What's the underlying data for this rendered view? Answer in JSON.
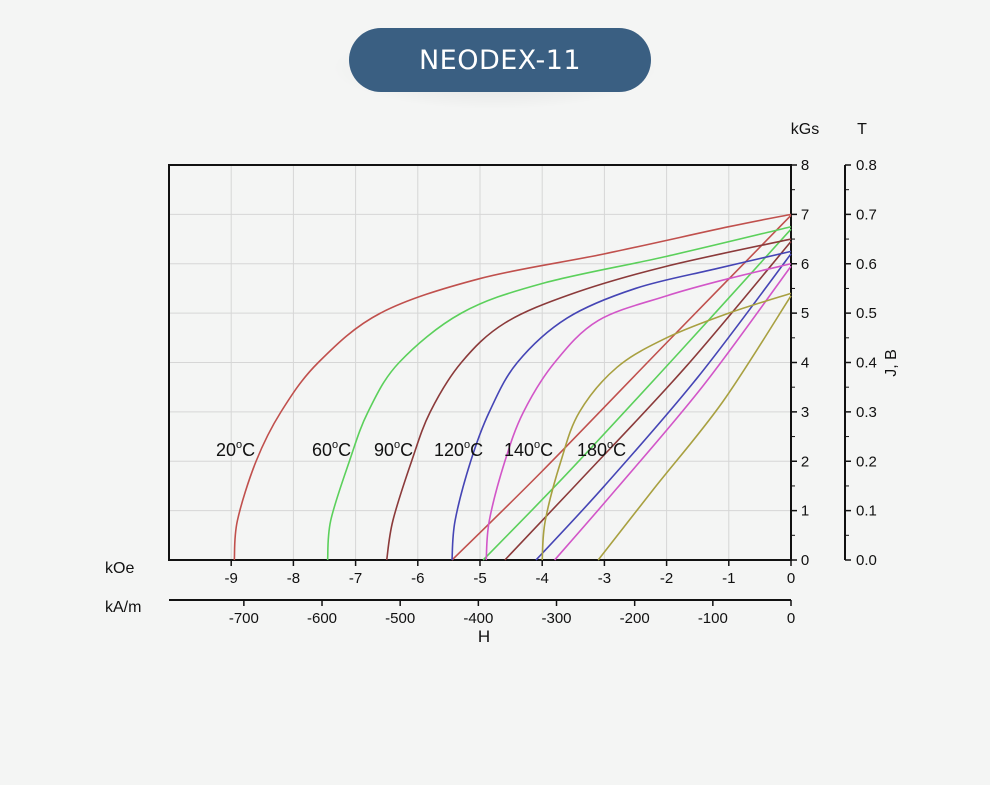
{
  "header": {
    "title": "NEODEX-11"
  },
  "chart_data": {
    "type": "line",
    "title": "NEODEX-11",
    "xlabel": "H",
    "ylabel": "J, B",
    "x_units": [
      "kOe",
      "kA/m"
    ],
    "y_units": [
      "kGs",
      "T"
    ],
    "xlim": [
      -10,
      0
    ],
    "ylim": [
      0,
      8
    ],
    "x_ticks_koe": [
      "-9",
      "-8",
      "-7",
      "-6",
      "-5",
      "-4",
      "-3",
      "-2",
      "-1",
      "0"
    ],
    "x_ticks_kam": [
      "-700",
      "-600",
      "-500",
      "-400",
      "-300",
      "-200",
      "-100",
      "0"
    ],
    "y_ticks_kgs": [
      "0",
      "1",
      "2",
      "3",
      "4",
      "5",
      "6",
      "7",
      "8"
    ],
    "y_ticks_t": [
      "0.0",
      "0.1",
      "0.2",
      "0.3",
      "0.4",
      "0.5",
      "0.6",
      "0.7",
      "0.8"
    ],
    "grid": true,
    "series": [
      {
        "name": "20°C",
        "label_base": "20",
        "color": "#c0504d",
        "J": [
          [
            -8.95,
            0
          ],
          [
            -8.9,
            0.8
          ],
          [
            -8.6,
            2
          ],
          [
            -8.2,
            3
          ],
          [
            -7.6,
            4
          ],
          [
            -6.6,
            5
          ],
          [
            -5,
            5.7
          ],
          [
            -3,
            6.2
          ],
          [
            -1,
            6.75
          ],
          [
            0,
            7.0
          ]
        ],
        "B": [
          [
            -5.45,
            0
          ],
          [
            -4,
            1.8
          ],
          [
            -2,
            4.4
          ],
          [
            0,
            6.98
          ]
        ]
      },
      {
        "name": "60°C",
        "label_base": "60",
        "color": "#5bd05b",
        "J": [
          [
            -7.45,
            0
          ],
          [
            -7.4,
            0.8
          ],
          [
            -7.1,
            2
          ],
          [
            -6.8,
            3
          ],
          [
            -6.3,
            4
          ],
          [
            -5.3,
            5
          ],
          [
            -4,
            5.6
          ],
          [
            -2,
            6.15
          ],
          [
            0,
            6.75
          ]
        ],
        "B": [
          [
            -4.95,
            0
          ],
          [
            -3.6,
            1.75
          ],
          [
            -1.8,
            4.2
          ],
          [
            0,
            6.7
          ]
        ]
      },
      {
        "name": "90°C",
        "label_base": "90",
        "color": "#8b3a3a",
        "J": [
          [
            -6.5,
            0
          ],
          [
            -6.4,
            0.8
          ],
          [
            -6.1,
            2
          ],
          [
            -5.8,
            3
          ],
          [
            -5.3,
            4
          ],
          [
            -4.6,
            4.8
          ],
          [
            -3.5,
            5.4
          ],
          [
            -2,
            5.95
          ],
          [
            0,
            6.5
          ]
        ],
        "B": [
          [
            -4.6,
            0
          ],
          [
            -3.4,
            1.6
          ],
          [
            -1.7,
            3.9
          ],
          [
            0,
            6.45
          ]
        ]
      },
      {
        "name": "120°C",
        "label_base": "120",
        "color": "#4545b5",
        "J": [
          [
            -5.45,
            0
          ],
          [
            -5.4,
            0.8
          ],
          [
            -5.15,
            2
          ],
          [
            -4.85,
            3
          ],
          [
            -4.4,
            4
          ],
          [
            -3.6,
            4.9
          ],
          [
            -2.5,
            5.5
          ],
          [
            -1.2,
            5.9
          ],
          [
            0,
            6.25
          ]
        ],
        "B": [
          [
            -4.1,
            0
          ],
          [
            -3,
            1.5
          ],
          [
            -1.5,
            3.7
          ],
          [
            0,
            6.2
          ]
        ]
      },
      {
        "name": "140°C",
        "label_base": "140",
        "color": "#d256c8",
        "J": [
          [
            -4.9,
            0
          ],
          [
            -4.85,
            0.8
          ],
          [
            -4.6,
            2
          ],
          [
            -4.3,
            3
          ],
          [
            -3.8,
            4
          ],
          [
            -3.1,
            4.85
          ],
          [
            -2,
            5.35
          ],
          [
            -1,
            5.7
          ],
          [
            0,
            6.0
          ]
        ],
        "B": [
          [
            -3.8,
            0
          ],
          [
            -2.8,
            1.45
          ],
          [
            -1.4,
            3.55
          ],
          [
            0,
            5.95
          ]
        ]
      },
      {
        "name": "180°C",
        "label_base": "180",
        "color": "#a8a040",
        "J": [
          [
            -4.0,
            0
          ],
          [
            -3.95,
            0.8
          ],
          [
            -3.7,
            2
          ],
          [
            -3.4,
            3
          ],
          [
            -2.8,
            3.9
          ],
          [
            -2,
            4.5
          ],
          [
            -1,
            5.0
          ],
          [
            0,
            5.4
          ]
        ],
        "B": [
          [
            -3.1,
            0
          ],
          [
            -2.2,
            1.45
          ],
          [
            -1.1,
            3.2
          ],
          [
            0,
            5.35
          ]
        ]
      }
    ]
  }
}
